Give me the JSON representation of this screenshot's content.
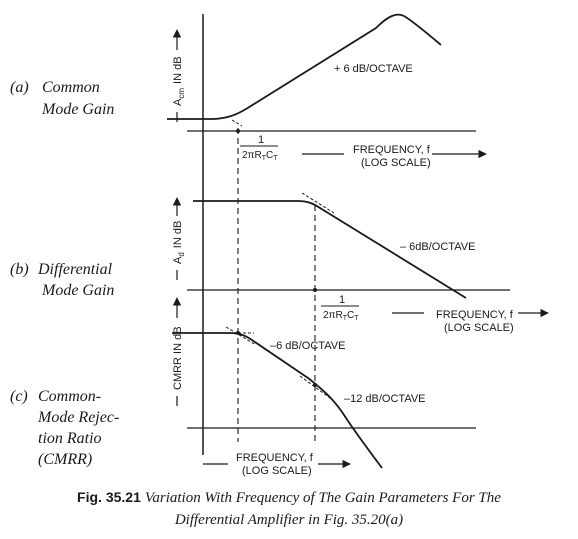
{
  "panels": {
    "a": {
      "tag": "(a)",
      "label_lines": [
        "Common",
        "Mode Gain"
      ],
      "y_axis_label": "A",
      "y_axis_sub": "cm",
      "y_axis_suffix": "IN dB",
      "slope_label": "+ 6 dB/OCTAVE",
      "freq_label_lines": [
        "FREQUENCY, f",
        "(LOG SCALE)"
      ],
      "corner": {
        "numerator": "1",
        "denominator": "2πR",
        "sub1": "T",
        "mid": "C",
        "sub2": "T"
      }
    },
    "b": {
      "tag": "(b)",
      "label_lines": [
        "Differential",
        "Mode Gain"
      ],
      "y_axis_label": "A",
      "y_axis_sub": "d",
      "y_axis_suffix": "IN dB",
      "slope_label": "– 6dB/OCTAVE",
      "freq_label_lines": [
        "FREQUENCY, f",
        "(LOG SCALE)"
      ],
      "corner": {
        "numerator": "1",
        "denominator": "2πR",
        "sub1": "T",
        "mid": "C",
        "sub2": "T"
      }
    },
    "c": {
      "tag": "(c)",
      "label_lines": [
        "Common-",
        "Mode Rejec-",
        "tion Ratio",
        "(CMRR)"
      ],
      "y_axis_label": "CMRR IN dB",
      "slope1_label": "–6 dB/OCTAVE",
      "slope2_label": "–12 dB/OCTAVE",
      "freq_label_lines": [
        "FREQUENCY, f",
        "(LOG SCALE)"
      ]
    }
  },
  "caption": {
    "number": "Fig. 35.21",
    "line1": "Variation With Frequency of The Gain Parameters For The",
    "line2": "Differential Amplifier in Fig. 35.20(a)"
  }
}
